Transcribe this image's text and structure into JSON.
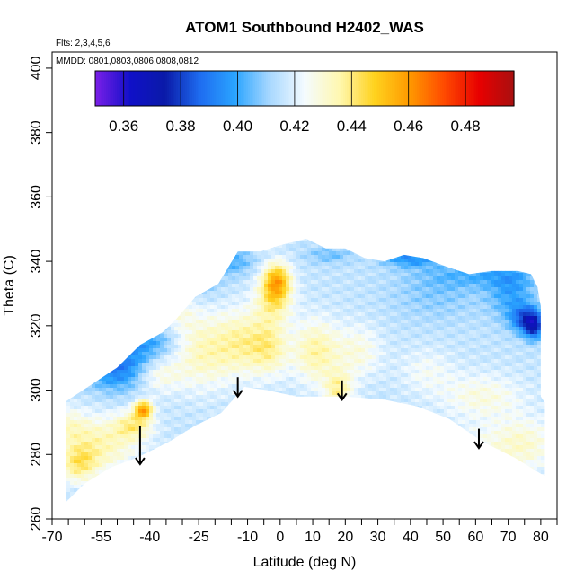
{
  "chart_data": {
    "type": "heatmap",
    "title": "ATOM1 Southbound H2402_WAS",
    "flights_note": "Flts: 2,3,4,5,6",
    "dates_note": "MMDD: 0801,0803,0806,0808,0812",
    "xlabel": "Latitude (deg N)",
    "ylabel": "Theta (C)",
    "xlim": [
      -70,
      85
    ],
    "ylim": [
      260,
      405
    ],
    "x_ticks": [
      -70,
      -55,
      -40,
      -25,
      -10,
      0,
      10,
      20,
      30,
      40,
      50,
      60,
      70,
      80
    ],
    "x_tick_labels": [
      "-70",
      "-55",
      "-40",
      "-25",
      "-10",
      "0",
      "10",
      "20",
      "30",
      "40",
      "50",
      "60",
      "70",
      "80"
    ],
    "x_minor_ticks": [
      -65,
      -60,
      -50,
      -45,
      -35,
      -30,
      -20,
      -15,
      -5,
      5,
      15,
      25,
      35,
      45,
      55,
      65,
      75,
      85
    ],
    "y_ticks": [
      260,
      280,
      300,
      320,
      340,
      360,
      380,
      400
    ],
    "y_tick_labels": [
      "260",
      "280",
      "300",
      "320",
      "340",
      "360",
      "380",
      "400"
    ],
    "colorbar": {
      "range": [
        0.35,
        0.497
      ],
      "ticks": [
        0.36,
        0.38,
        0.4,
        0.42,
        0.44,
        0.46,
        0.48
      ],
      "tick_labels": [
        "0.36",
        "0.38",
        "0.40",
        "0.42",
        "0.44",
        "0.46",
        "0.48"
      ],
      "colors": [
        "#7b1fe8",
        "#1010c8",
        "#0a1aa8",
        "#1e6cf0",
        "#2aa4ff",
        "#a8d8ff",
        "#f4fbff",
        "#fff8b0",
        "#ffd21e",
        "#ff9a00",
        "#ff4a00",
        "#e80000",
        "#a81010"
      ]
    },
    "domain_outline": [
      [
        -68,
        268
      ],
      [
        -68,
        295
      ],
      [
        -56,
        303
      ],
      [
        -50,
        307
      ],
      [
        -43,
        314
      ],
      [
        -36,
        318
      ],
      [
        -32,
        322
      ],
      [
        -26,
        329
      ],
      [
        -19,
        333
      ],
      [
        -13,
        343
      ],
      [
        -6,
        343
      ],
      [
        0,
        345
      ],
      [
        4,
        346
      ],
      [
        8,
        347
      ],
      [
        14,
        344
      ],
      [
        20,
        344
      ],
      [
        26,
        341
      ],
      [
        32,
        340
      ],
      [
        38,
        342
      ],
      [
        44,
        341
      ],
      [
        52,
        338
      ],
      [
        58,
        336
      ],
      [
        65,
        337
      ],
      [
        73,
        337
      ],
      [
        77,
        336
      ],
      [
        79,
        332
      ],
      [
        80,
        326
      ],
      [
        80,
        298
      ],
      [
        82,
        295
      ],
      [
        82,
        273
      ],
      [
        80,
        274
      ],
      [
        72,
        279
      ],
      [
        62,
        284
      ],
      [
        52,
        291
      ],
      [
        42,
        295
      ],
      [
        32,
        297
      ],
      [
        20,
        298
      ],
      [
        12,
        298
      ],
      [
        5,
        298
      ],
      [
        -4,
        300
      ],
      [
        -11,
        301
      ],
      [
        -18,
        293
      ],
      [
        -26,
        289
      ],
      [
        -34,
        284
      ],
      [
        -44,
        279
      ],
      [
        -52,
        276
      ],
      [
        -60,
        271
      ],
      [
        -66,
        265
      ]
    ],
    "field_baseline": 0.416,
    "anomalies": [
      {
        "lat": -11,
        "theta": 315,
        "sx": 6,
        "sy": 7,
        "amp": 0.018
      },
      {
        "lat": -3,
        "theta": 313,
        "sx": 4,
        "sy": 6,
        "amp": 0.016
      },
      {
        "lat": -1,
        "theta": 334,
        "sx": 3,
        "sy": 4,
        "amp": 0.034
      },
      {
        "lat": -2,
        "theta": 328,
        "sx": 4,
        "sy": 5,
        "amp": 0.02
      },
      {
        "lat": -24,
        "theta": 312,
        "sx": 7,
        "sy": 8,
        "amp": 0.017
      },
      {
        "lat": -33,
        "theta": 325,
        "sx": 5,
        "sy": 6,
        "amp": 0.012
      },
      {
        "lat": -38,
        "theta": 305,
        "sx": 5,
        "sy": 4,
        "amp": 0.014
      },
      {
        "lat": -55,
        "theta": 283,
        "sx": 8,
        "sy": 6,
        "amp": 0.018
      },
      {
        "lat": -45,
        "theta": 289,
        "sx": 4,
        "sy": 3,
        "amp": 0.02
      },
      {
        "lat": -42,
        "theta": 294,
        "sx": 2,
        "sy": 2,
        "amp": 0.04
      },
      {
        "lat": -62,
        "theta": 277,
        "sx": 4,
        "sy": 4,
        "amp": 0.02
      },
      {
        "lat": -66,
        "theta": 289,
        "sx": 5,
        "sy": 4,
        "amp": 0.012
      },
      {
        "lat": 11,
        "theta": 312,
        "sx": 5,
        "sy": 7,
        "amp": 0.02
      },
      {
        "lat": 18,
        "theta": 300,
        "sx": 3,
        "sy": 4,
        "amp": 0.02
      },
      {
        "lat": 24,
        "theta": 312,
        "sx": 5,
        "sy": 6,
        "amp": 0.012
      },
      {
        "lat": 45,
        "theta": 306,
        "sx": 6,
        "sy": 5,
        "amp": 0.008
      },
      {
        "lat": 62,
        "theta": 298,
        "sx": 9,
        "sy": 5,
        "amp": 0.012
      },
      {
        "lat": 74,
        "theta": 283,
        "sx": 8,
        "sy": 6,
        "amp": 0.015
      },
      {
        "lat": 48,
        "theta": 330,
        "sx": 10,
        "sy": 6,
        "amp": -0.008
      },
      {
        "lat": 71,
        "theta": 330,
        "sx": 5,
        "sy": 6,
        "amp": -0.016
      },
      {
        "lat": 75,
        "theta": 322,
        "sx": 3,
        "sy": 3,
        "amp": -0.028
      },
      {
        "lat": 78,
        "theta": 320,
        "sx": 2,
        "sy": 3,
        "amp": -0.035
      },
      {
        "lat": 62,
        "theta": 336,
        "sx": 12,
        "sy": 3,
        "amp": -0.012
      },
      {
        "lat": 40,
        "theta": 341,
        "sx": 6,
        "sy": 2,
        "amp": -0.02
      },
      {
        "lat": -50,
        "theta": 307,
        "sx": 7,
        "sy": 5,
        "amp": -0.026
      },
      {
        "lat": -40,
        "theta": 316,
        "sx": 7,
        "sy": 5,
        "amp": -0.018
      },
      {
        "lat": -28,
        "theta": 334,
        "sx": 6,
        "sy": 4,
        "amp": -0.014
      },
      {
        "lat": -15,
        "theta": 340,
        "sx": 5,
        "sy": 3,
        "amp": -0.014
      },
      {
        "lat": 15,
        "theta": 342,
        "sx": 5,
        "sy": 2,
        "amp": -0.01
      },
      {
        "lat": 55,
        "theta": 281,
        "sx": 8,
        "sy": 5,
        "amp": 0.008
      }
    ],
    "arrows": [
      {
        "lat": -43,
        "theta_top": 289,
        "theta_bottom": 277
      },
      {
        "lat": -13,
        "theta_top": 304,
        "theta_bottom": 298
      },
      {
        "lat": 19,
        "theta_top": 303,
        "theta_bottom": 297
      },
      {
        "lat": 61,
        "theta_top": 288,
        "theta_bottom": 282
      }
    ]
  }
}
